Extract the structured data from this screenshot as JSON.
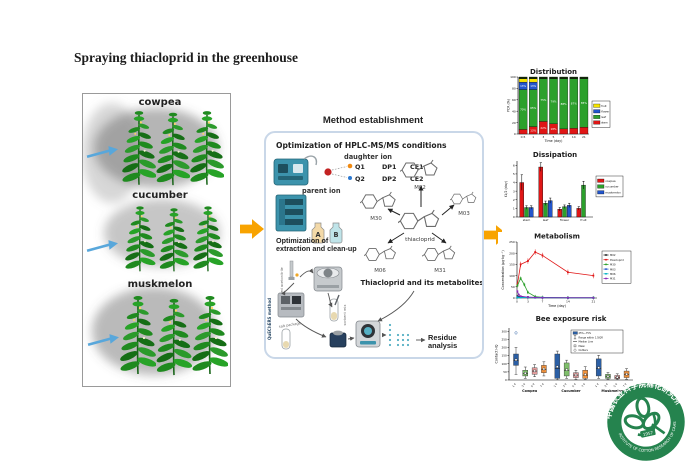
{
  "page": {
    "title": "Spraying thiacloprid in the greenhouse"
  },
  "greenhouse": {
    "crops": [
      "cowpea",
      "cucumber",
      "muskmelon"
    ]
  },
  "method": {
    "title": "Method establishment",
    "hplc_title": "Optimization of HPLC-MS/MS conditions",
    "daughter_ion": "daughter ion",
    "parent_ion": "parent ion",
    "q1": "Q1",
    "q2": "Q2",
    "dp1": "DP1",
    "dp2": "DP2",
    "ce1": "CE1",
    "ce2": "CE2",
    "bottle_a": "A",
    "bottle_b": "B",
    "extraction_title": "Optimization of extraction and clean-up",
    "metabolites_caption": "Thiacloprid and its metabolites",
    "compound": "thiacloprid",
    "m02": "M02",
    "m30": "M30",
    "m03": "M03",
    "m06": "M06",
    "m31": "M31",
    "quechers": "QuEChERS method",
    "acetonitrile": "acidized acetonitrile",
    "salt": "salt package",
    "sorbent": "sorbent mix",
    "residue": "Residue analysis"
  },
  "colors": {
    "accent_arrow": "#F8A300",
    "spray": "#58A7DB",
    "logo_green": "#157a41"
  },
  "chart_data": [
    {
      "type": "bar",
      "mode": "stacked",
      "title": "Distribution",
      "xlabel": "Time (day)",
      "ylabel": "PCR (%)",
      "ylim": [
        0,
        100
      ],
      "yticks": [
        0,
        20,
        40,
        60,
        80,
        100
      ],
      "categories": [
        "0.5",
        "1",
        "3",
        "5",
        "7",
        "14",
        "21"
      ],
      "series": [
        {
          "name": "stem",
          "color": "#e01616",
          "values": [
            8,
            13,
            22,
            18,
            9,
            10,
            12
          ]
        },
        {
          "name": "leaf",
          "color": "#2ca02c",
          "values": [
            70,
            65,
            75,
            79,
            88,
            87,
            85
          ]
        },
        {
          "name": "flower",
          "color": "#2255cc",
          "values": [
            13,
            13,
            0,
            0,
            0,
            0,
            0
          ]
        },
        {
          "name": "fruit",
          "color": "#f5e400",
          "values": [
            6,
            6,
            0,
            0,
            0,
            0,
            0
          ]
        },
        {
          "name": "cap",
          "color": "#15300a",
          "values": [
            3,
            3,
            3,
            3,
            3,
            3,
            3
          ],
          "show_label": false
        }
      ],
      "legend": [
        {
          "label": "fruit",
          "color": "#f5e400"
        },
        {
          "label": "flower",
          "color": "#2255cc"
        },
        {
          "label": "leaf",
          "color": "#2ca02c"
        },
        {
          "label": "stem",
          "color": "#e01616"
        }
      ]
    },
    {
      "type": "bar",
      "mode": "grouped",
      "title": "Dissipation",
      "ylabel": "t1/2 (day)",
      "ylim": [
        0,
        6.5
      ],
      "yticks": [
        0,
        1,
        2,
        3,
        4,
        5,
        6
      ],
      "categories": [
        "stem",
        "leaf",
        "flower",
        "fruit"
      ],
      "series": [
        {
          "name": "cowpea",
          "color": "#e01616",
          "values": [
            4.0,
            5.8,
            0.9,
            1.0
          ],
          "errors": [
            0.9,
            0.5,
            0.2,
            0.2
          ]
        },
        {
          "name": "cucumber",
          "color": "#2ca02c",
          "values": [
            1.1,
            1.6,
            1.2,
            3.7
          ],
          "errors": [
            0.2,
            0.25,
            0.2,
            0.45
          ]
        },
        {
          "name": "muskmelon",
          "color": "#2255cc",
          "values": [
            1.1,
            1.9,
            1.35,
            null
          ],
          "errors": [
            0.2,
            0.3,
            0.25,
            null
          ]
        }
      ]
    },
    {
      "type": "line",
      "title": "Metabolism",
      "xlabel": "Time (day)",
      "ylabel": "Concentration (μg·kg⁻¹)",
      "xlim": [
        0,
        22
      ],
      "ylim": [
        0,
        250
      ],
      "xticks": [
        0,
        3,
        7,
        14,
        21
      ],
      "yticks": [
        0,
        50,
        100,
        150,
        200,
        250
      ],
      "series": [
        {
          "name": "M02",
          "color": "#1a1a1a",
          "x": [
            0.1,
            1,
            3,
            5,
            7,
            14,
            21
          ],
          "y": [
            8,
            6,
            4,
            3,
            2,
            1,
            1
          ]
        },
        {
          "name": "thiacloprid",
          "color": "#e01616",
          "x": [
            0.1,
            1,
            3,
            5,
            7,
            14,
            21
          ],
          "y": [
            60,
            150,
            165,
            205,
            190,
            115,
            100
          ],
          "err": 12
        },
        {
          "name": "M30",
          "color": "#2ca02c",
          "x": [
            0.1,
            1,
            2,
            3,
            5,
            7,
            14,
            21
          ],
          "y": [
            55,
            88,
            60,
            25,
            6,
            3,
            1,
            1
          ],
          "err": 8
        },
        {
          "name": "M03",
          "color": "#2255cc",
          "x": [
            0.1,
            1,
            3,
            5,
            7,
            14,
            21
          ],
          "y": [
            4,
            3,
            3,
            2,
            2,
            1,
            1
          ]
        },
        {
          "name": "M06",
          "color": "#00b2c4",
          "x": [
            0.1,
            1,
            3,
            5,
            7,
            14,
            21
          ],
          "y": [
            2,
            2,
            2,
            1,
            1,
            1,
            1
          ]
        },
        {
          "name": "M31",
          "color": "#8a2bb8",
          "x": [
            0.1,
            0.5,
            1,
            3,
            5,
            7,
            14,
            21
          ],
          "y": [
            30,
            15,
            8,
            4,
            2,
            1,
            1,
            1
          ]
        }
      ]
    },
    {
      "type": "box",
      "title": "Bee exposure risk",
      "ylabel": "Contact HQ",
      "ylim": [
        0,
        320
      ],
      "yticks": [
        0,
        50,
        100,
        150,
        200,
        250,
        300
      ],
      "groups": [
        "Cowpea",
        "Cucumber",
        "Muskmelon"
      ],
      "box_labels": [
        "1 d",
        "3 d",
        "5 d",
        "7 d"
      ],
      "colors": [
        "#2b5fa5",
        "#7fbf6b",
        "#e8a0a0",
        "#f0913b"
      ],
      "legend": [
        "25%~75%",
        "Range within 1.5IQR",
        "Median Line",
        "Mean",
        "Outliers"
      ],
      "data": [
        [
          {
            "lo": 35,
            "q1": 90,
            "med": 120,
            "q3": 160,
            "hi": 200,
            "mean": 125,
            "out": [
              290
            ]
          },
          {
            "lo": 10,
            "q1": 25,
            "med": 40,
            "q3": 60,
            "hi": 80,
            "mean": 42,
            "out": []
          },
          {
            "lo": 20,
            "q1": 35,
            "med": 55,
            "q3": 75,
            "hi": 95,
            "mean": 56,
            "out": []
          },
          {
            "lo": 25,
            "q1": 45,
            "med": 65,
            "q3": 90,
            "hi": 112,
            "mean": 68,
            "out": []
          }
        ],
        [
          {
            "lo": 2,
            "q1": 10,
            "med": 70,
            "q3": 160,
            "hi": 178,
            "mean": 82,
            "out": []
          },
          {
            "lo": 10,
            "q1": 25,
            "med": 60,
            "q3": 105,
            "hi": 122,
            "mean": 64,
            "out": []
          },
          {
            "lo": 5,
            "q1": 15,
            "med": 30,
            "q3": 45,
            "hi": 60,
            "mean": 31,
            "out": []
          },
          {
            "lo": 4,
            "q1": 10,
            "med": 30,
            "q3": 60,
            "hi": 82,
            "mean": 34,
            "out": []
          }
        ],
        [
          {
            "lo": 10,
            "q1": 25,
            "med": 70,
            "q3": 130,
            "hi": 152,
            "mean": 76,
            "out": []
          },
          {
            "lo": 4,
            "q1": 10,
            "med": 20,
            "q3": 35,
            "hi": 46,
            "mean": 22,
            "out": []
          },
          {
            "lo": 3,
            "q1": 8,
            "med": 15,
            "q3": 28,
            "hi": 38,
            "mean": 17,
            "out": []
          },
          {
            "lo": 5,
            "q1": 15,
            "med": 35,
            "q3": 55,
            "hi": 70,
            "mean": 36,
            "out": []
          }
        ]
      ]
    }
  ],
  "logo": {
    "cn": "中国农业科学院棉花研究所",
    "en": "INSTITUTE OF COTTON RESEARCH OF CAAS",
    "year": "1957"
  }
}
